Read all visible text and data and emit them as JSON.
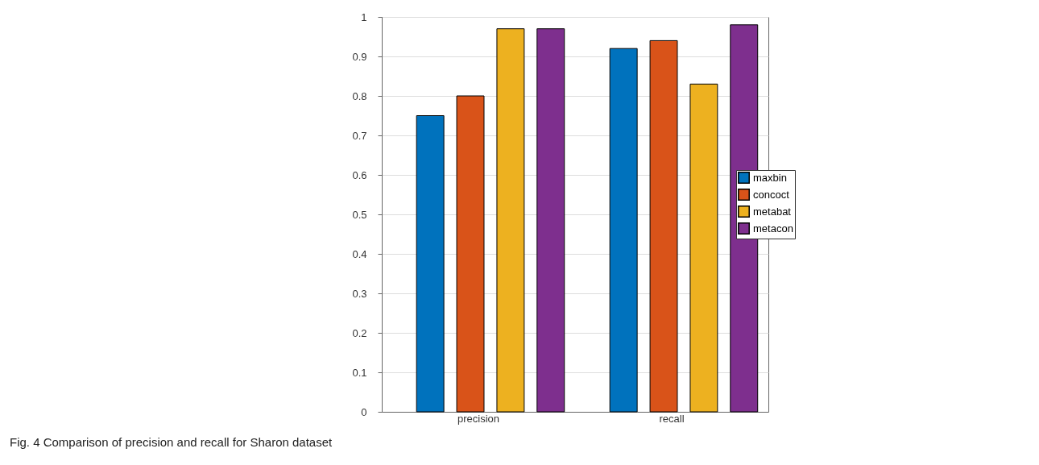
{
  "chart_data": {
    "type": "bar",
    "categories": [
      "precision",
      "recall"
    ],
    "series": [
      {
        "name": "maxbin",
        "color": "#0072bd",
        "values": [
          0.75,
          0.92
        ]
      },
      {
        "name": "concoct",
        "color": "#d95319",
        "values": [
          0.8,
          0.94
        ]
      },
      {
        "name": "metabat",
        "color": "#edb120",
        "values": [
          0.97,
          0.83
        ]
      },
      {
        "name": "metacon",
        "color": "#7e2f8e",
        "values": [
          0.97,
          0.98
        ]
      }
    ],
    "ylim": [
      0,
      1
    ],
    "yticks": [
      0,
      0.1,
      0.2,
      0.3,
      0.4,
      0.5,
      0.6,
      0.7,
      0.8,
      0.9,
      1
    ],
    "grid": true,
    "legend": "right",
    "annotations": [
      "Fig. 4 Comparison of precision and recall for Sharon dataset"
    ]
  }
}
